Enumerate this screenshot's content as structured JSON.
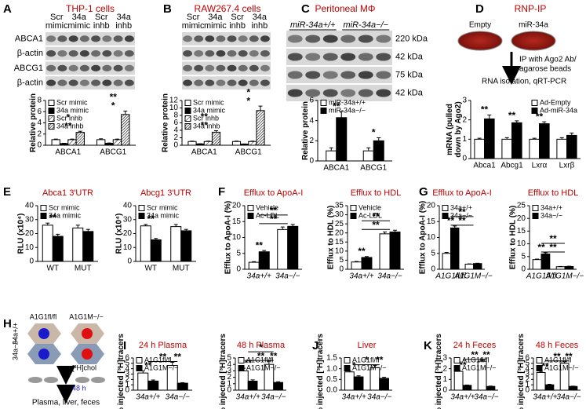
{
  "panel_letters": [
    "A",
    "B",
    "C",
    "D",
    "E",
    "F",
    "G",
    "H",
    "I",
    "J",
    "K"
  ],
  "blots": [
    {
      "title": "THP-1 cells",
      "lanes": [
        [
          "Scr",
          "mimic"
        ],
        [
          "34a",
          "mimic"
        ],
        [
          "Scr",
          "inhb"
        ],
        [
          "34a",
          "inhb"
        ]
      ],
      "rows": [
        "ABCA1",
        "β-actin",
        "ABCG1",
        "β-actin"
      ]
    },
    {
      "title": "RAW267.4 cells",
      "lanes": [
        [
          "Scr",
          "mimic"
        ],
        [
          "34a",
          "mimic"
        ],
        [
          "Scr",
          "inhb"
        ],
        [
          "34a",
          "inhb"
        ]
      ]
    },
    {
      "title": "Peritoneal MΦ",
      "lanes": [
        [
          "miR-34a+/+"
        ],
        [
          "miR-34a−/−"
        ]
      ],
      "rows": [
        "220 kDa",
        "42 kDa",
        "75 kDa",
        "42 kDa"
      ]
    }
  ],
  "rnp": {
    "title": "RNP-IP",
    "dishes": [
      "Empty",
      "miR-34a"
    ],
    "steps": [
      "IP with Ago2 Ab/",
      "agarose beads",
      "RNA isolation, qRT-PCR"
    ]
  },
  "schematic": {
    "columns": [
      "A1G1fl/fl",
      "A1G1M−/−"
    ],
    "rows": [
      "34a+/+",
      "34a−/−"
    ],
    "label": "[³H]chol",
    "time": "48 h",
    "tissues": "Plasma, liver, feces"
  },
  "chart_data": [
    {
      "type": "bar",
      "ylabel": "Relative protein",
      "categories": [
        "ABCA1",
        "ABCG1"
      ],
      "ylim": [
        0,
        8
      ],
      "yticks": [
        0,
        2,
        4,
        6,
        8
      ],
      "legend": "upper left",
      "series": [
        {
          "name": "Scr mimic",
          "color": "#ffffff",
          "values": [
            1,
            1
          ],
          "errors": [
            0.1,
            0.15
          ]
        },
        {
          "name": "34a mimic",
          "color": "#000000",
          "values": [
            0.3,
            0.35
          ],
          "errors": [
            0.05,
            0.05
          ]
        },
        {
          "name": "Scr inhb",
          "color": "#ffffff",
          "pattern": "diagonal",
          "values": [
            1,
            1
          ],
          "errors": [
            0.1,
            0.1
          ]
        },
        {
          "name": "34a inhb",
          "color": "#ffffff",
          "pattern": "dense-diagonal",
          "values": [
            2.3,
            5.5
          ],
          "errors": [
            0.2,
            0.6
          ]
        }
      ],
      "annotations": [
        "**",
        "*",
        "*",
        "**"
      ]
    },
    {
      "type": "bar",
      "ylabel": "Relative protein",
      "categories": [
        "ABCA1",
        "ABCG1"
      ],
      "ylim": [
        0,
        12
      ],
      "yticks": [
        0,
        2,
        4,
        6,
        8,
        10,
        12
      ],
      "legend": "upper left",
      "series": [
        {
          "name": "Scr mimic",
          "color": "#ffffff",
          "values": [
            1,
            1
          ],
          "errors": [
            0.1,
            0.1
          ]
        },
        {
          "name": "34a mimic",
          "color": "#000000",
          "values": [
            0.35,
            0.3
          ],
          "errors": [
            0.05,
            0.05
          ]
        },
        {
          "name": "Scr inhb",
          "color": "#ffffff",
          "pattern": "diagonal",
          "values": [
            1,
            1
          ],
          "errors": [
            0.1,
            0.1
          ]
        },
        {
          "name": "34a inhb",
          "color": "#ffffff",
          "pattern": "dense-diagonal",
          "values": [
            3.5,
            9.3
          ],
          "errors": [
            0.4,
            1.2
          ]
        }
      ],
      "annotations": [
        "**",
        "**",
        "*",
        "*"
      ]
    },
    {
      "type": "bar",
      "ylabel": "Relative protein",
      "categories": [
        "ABCA1",
        "ABCG1"
      ],
      "ylim": [
        0,
        6
      ],
      "yticks": [
        0,
        2,
        4,
        6
      ],
      "legend": "upper left",
      "series": [
        {
          "name": "miR-34a+/+",
          "color": "#ffffff",
          "values": [
            1,
            1
          ],
          "errors": [
            0.3,
            0.3
          ]
        },
        {
          "name": "miR-34a−/−",
          "color": "#000000",
          "values": [
            4.3,
            2
          ],
          "errors": [
            0.6,
            0.3
          ]
        }
      ],
      "annotations": [
        "**",
        "*"
      ]
    },
    {
      "type": "bar",
      "ylabel": [
        "mRNA (pulled",
        "down by Ago2)"
      ],
      "categories": [
        "Abca1",
        "Abcg1",
        "Lxrα",
        "Lxrβ"
      ],
      "ylim": [
        0,
        3
      ],
      "yticks": [
        0,
        1,
        2,
        3
      ],
      "legend": "upper right",
      "series": [
        {
          "name": "Ad-Empty",
          "color": "#ffffff",
          "values": [
            1,
            1,
            1,
            1
          ],
          "errors": [
            0.05,
            0.08,
            0.05,
            0.08
          ]
        },
        {
          "name": "Ad-miR-34a",
          "color": "#000000",
          "values": [
            2.05,
            1.85,
            1.8,
            1.2
          ],
          "errors": [
            0.2,
            0.1,
            0.1,
            0.12
          ]
        }
      ],
      "annotations": [
        "**",
        "**",
        "**"
      ]
    },
    {
      "type": "bar",
      "title": "Abca1 3′UTR",
      "ylabel": "RLU (x10⁴)",
      "categories": [
        "WT",
        "MUT"
      ],
      "ylim": [
        0,
        40
      ],
      "yticks": [
        0,
        10,
        20,
        30,
        40
      ],
      "legend": "upper left",
      "series": [
        {
          "name": "Scr mimic",
          "color": "#ffffff",
          "values": [
            26,
            24
          ],
          "errors": [
            1.5,
            2
          ]
        },
        {
          "name": "34a mimic",
          "color": "#000000",
          "values": [
            18,
            21.5
          ],
          "errors": [
            1.5,
            1.5
          ]
        }
      ],
      "annotations": [
        "**"
      ]
    },
    {
      "type": "bar",
      "title": "Abcg1 3′UTR",
      "ylabel": "RLU (x10⁴)",
      "categories": [
        "WT",
        "MUT"
      ],
      "ylim": [
        0,
        40
      ],
      "yticks": [
        0,
        10,
        20,
        30,
        40
      ],
      "legend": "upper left",
      "series": [
        {
          "name": "Scr mimic",
          "color": "#ffffff",
          "values": [
            25.5,
            25
          ],
          "errors": [
            1,
            1.5
          ]
        },
        {
          "name": "34a mimic",
          "color": "#000000",
          "values": [
            15.5,
            22
          ],
          "errors": [
            1,
            1
          ]
        }
      ],
      "annotations": [
        "**"
      ]
    },
    {
      "type": "bar",
      "title": "Efflux to ApoA-I",
      "ylabel": "Efflux to ApoA-I (%)",
      "categories": [
        "34a+/+",
        "34a−/−"
      ],
      "ylim": [
        0,
        20
      ],
      "yticks": [
        0,
        5,
        10,
        15,
        20
      ],
      "legend": "upper left",
      "series": [
        {
          "name": "Vehicle",
          "color": "#ffffff",
          "values": [
            2.2,
            12.5
          ],
          "errors": [
            0.2,
            0.8
          ]
        },
        {
          "name": "Ac-LDL",
          "color": "#000000",
          "values": [
            5.5,
            13.5
          ],
          "errors": [
            0.4,
            0.6
          ]
        }
      ],
      "annotations": [
        "**",
        "**",
        "**"
      ]
    },
    {
      "type": "bar",
      "title": "Efflux to HDL",
      "ylabel": "Efflux to HDL (%)",
      "categories": [
        "34a+/+",
        "34a−/−"
      ],
      "ylim": [
        0,
        35
      ],
      "yticks": [
        0,
        5,
        10,
        15,
        20,
        25,
        30,
        35
      ],
      "legend": "upper left",
      "series": [
        {
          "name": "Vehicle",
          "color": "#ffffff",
          "values": [
            4,
            19.5
          ],
          "errors": [
            0.3,
            1
          ]
        },
        {
          "name": "Ac-LDL",
          "color": "#000000",
          "values": [
            6.5,
            20.5
          ],
          "errors": [
            0.5,
            1
          ]
        }
      ],
      "annotations": [
        "**",
        "**",
        "**"
      ]
    },
    {
      "type": "bar",
      "title": "Efflux to ApoA-I",
      "ylabel": "Efflux to ApoA-I (%)",
      "categories": [
        "A1G1fl/fl",
        "A1G1M−/−"
      ],
      "ylim": [
        0,
        20
      ],
      "yticks": [
        0,
        5,
        10,
        15,
        20
      ],
      "legend": "upper left",
      "series": [
        {
          "name": "34a+/+",
          "color": "#ffffff",
          "values": [
            5,
            1.6
          ],
          "errors": [
            0.3,
            0.1
          ]
        },
        {
          "name": "34a−/−",
          "color": "#000000",
          "values": [
            13,
            1.8
          ],
          "errors": [
            0.6,
            0.1
          ]
        }
      ],
      "annotations": [
        "**",
        "**",
        "**"
      ]
    },
    {
      "type": "bar",
      "title": "Efflux to HDL",
      "ylabel": "Efflux to HDL (%)",
      "categories": [
        "A1G1fl/fl",
        "A1G1M−/−"
      ],
      "ylim": [
        0,
        25
      ],
      "yticks": [
        0,
        5,
        10,
        15,
        20,
        25
      ],
      "legend": "upper left",
      "series": [
        {
          "name": "34a+/+",
          "color": "#ffffff",
          "values": [
            3.8,
            1
          ],
          "errors": [
            0.2,
            0.1
          ]
        },
        {
          "name": "34a−/−",
          "color": "#000000",
          "values": [
            6,
            1.1
          ],
          "errors": [
            0.5,
            0.1
          ]
        }
      ],
      "annotations": [
        "**",
        "**",
        "**"
      ]
    },
    {
      "type": "bar",
      "title": "24 h Plasma",
      "ylabel": "% injected [³H]tracers",
      "categories": [
        "34a+/+",
        "34a−/−"
      ],
      "ylim": [
        0,
        6
      ],
      "yticks": [
        0,
        1,
        2,
        3,
        4,
        5,
        6
      ],
      "legend": "upper left",
      "series": [
        {
          "name": "A1G1fl/fl",
          "color": "#ffffff",
          "values": [
            3.2,
            4.6
          ],
          "errors": [
            0.4,
            0.6
          ]
        },
        {
          "name": "A1G1M−/−",
          "color": "#000000",
          "values": [
            1.7,
            1.3
          ],
          "errors": [
            0.2,
            0.1
          ]
        }
      ],
      "annotations": [
        "**",
        "**",
        "**"
      ]
    },
    {
      "type": "bar",
      "title": "48 h Plasma",
      "ylabel": "% injected [³H]tracers",
      "categories": [
        "34a+/+",
        "34a−/−"
      ],
      "ylim": [
        0,
        5
      ],
      "yticks": [
        0,
        1,
        2,
        3,
        4,
        5
      ],
      "legend": "upper left",
      "series": [
        {
          "name": "A1G1fl/fl",
          "color": "#ffffff",
          "values": [
            3,
            4
          ],
          "errors": [
            0.4,
            0.5
          ]
        },
        {
          "name": "A1G1M−/−",
          "color": "#000000",
          "values": [
            1.4,
            1.2
          ],
          "errors": [
            0.2,
            0.1
          ]
        }
      ],
      "annotations": [
        "**",
        "**",
        "*",
        "**"
      ]
    },
    {
      "type": "bar",
      "title": "Liver",
      "ylabel": "% injected [³H]tracers",
      "categories": [
        "34a+/+",
        "34a−/−"
      ],
      "ylim": [
        0,
        1.5
      ],
      "yticks": [
        {
          "value": 0,
          "label": "0.0"
        },
        0.5,
        {
          "value": 1,
          "label": "1.0"
        },
        1.5
      ],
      "legend": "upper left",
      "series": [
        {
          "name": "A1G1fl/fl",
          "color": "#ffffff",
          "values": [
            0.85,
            1.05
          ],
          "errors": [
            0.05,
            0.1
          ]
        },
        {
          "name": "A1G1M−/−",
          "color": "#000000",
          "values": [
            0.62,
            0.55
          ],
          "errors": [
            0.05,
            0.05
          ]
        }
      ],
      "annotations": [
        "*",
        "*",
        "**"
      ]
    },
    {
      "type": "bar",
      "title": "24 h Feces",
      "ylabel": "% injected [³H]tracers",
      "categories": [
        "34a+/+",
        "34a−/−"
      ],
      "ylim": [
        0,
        3
      ],
      "yticks": [
        0,
        1,
        2,
        3
      ],
      "legend": "upper left",
      "series": [
        {
          "name": "A1G1fl/fl",
          "color": "#ffffff",
          "values": [
            1.75,
            2.7
          ],
          "errors": [
            0.1,
            0.1
          ]
        },
        {
          "name": "A1G1M−/−",
          "color": "#000000",
          "values": [
            0.45,
            0.35
          ],
          "errors": [
            0.03,
            0.03
          ]
        }
      ],
      "annotations": [
        "**",
        "**",
        "**"
      ]
    },
    {
      "type": "bar",
      "title": "48 h Feces",
      "ylabel": "% injected [³H]tracers",
      "categories": [
        "34a+/+",
        "34a−/−"
      ],
      "ylim": [
        0,
        6
      ],
      "yticks": [
        0,
        1,
        2,
        3,
        4,
        5,
        6
      ],
      "legend": "upper left",
      "series": [
        {
          "name": "A1G1fl/fl",
          "color": "#ffffff",
          "values": [
            3.3,
            5
          ],
          "errors": [
            0.2,
            0.3
          ]
        },
        {
          "name": "A1G1M−/−",
          "color": "#000000",
          "values": [
            1,
            0.7
          ],
          "errors": [
            0.1,
            0.05
          ]
        }
      ],
      "annotations": [
        "**",
        "**",
        "**"
      ]
    }
  ]
}
